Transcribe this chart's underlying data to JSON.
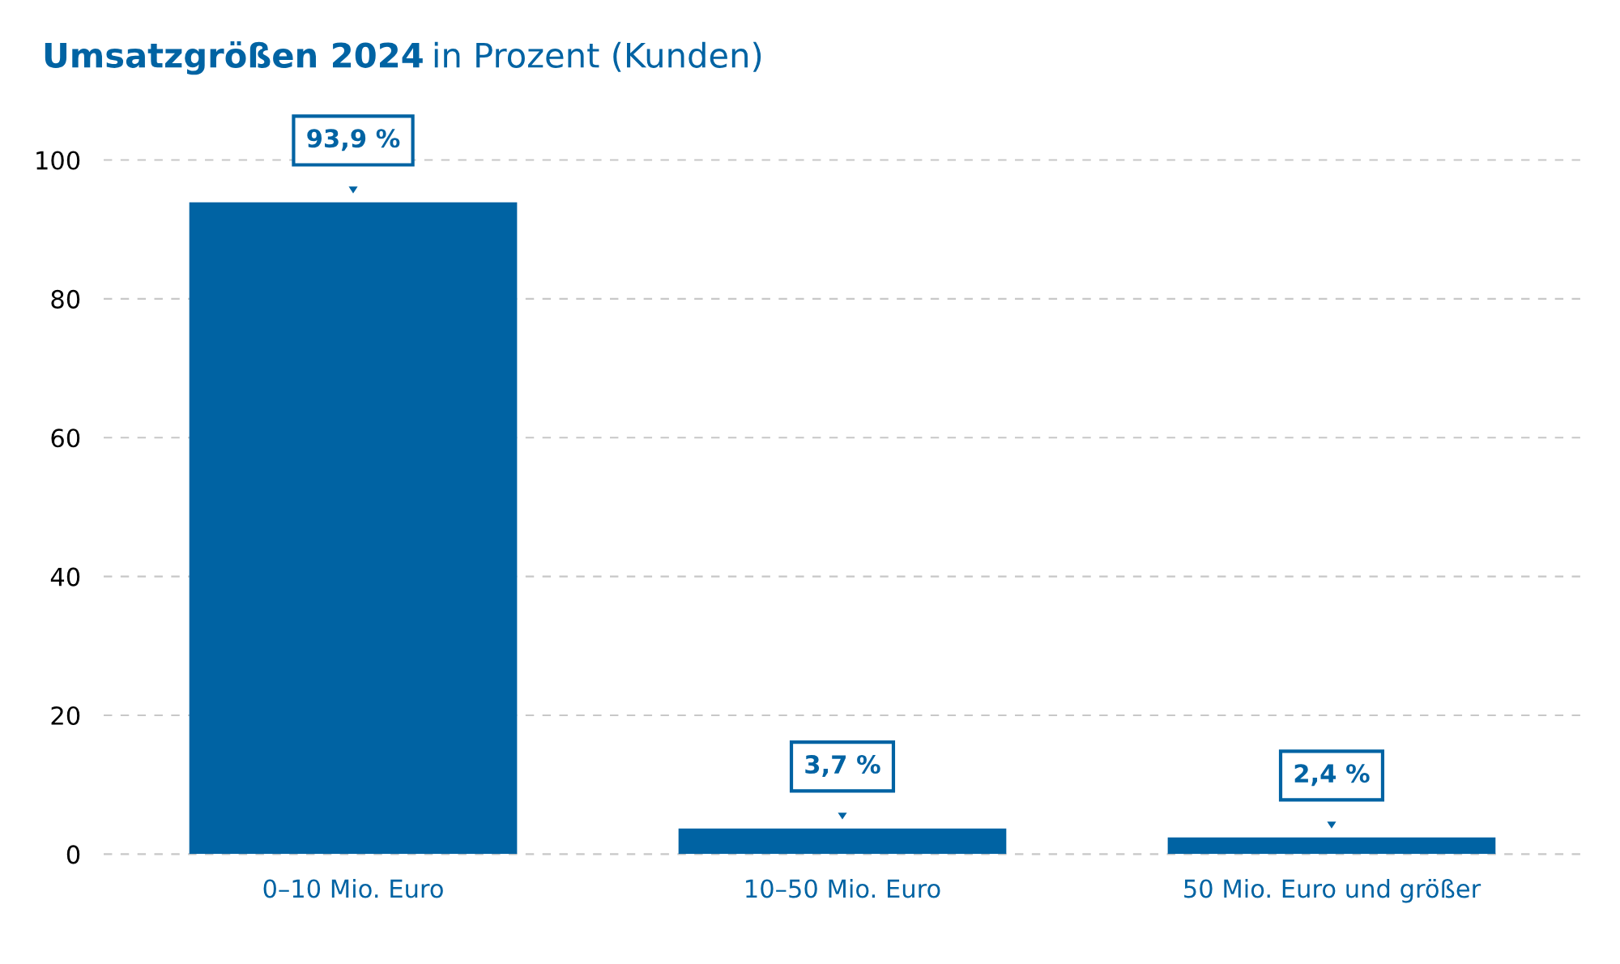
{
  "chart_data": {
    "type": "bar",
    "title": "Umsatzgrößen 2024",
    "subtitle": "in Prozent (Kunden)",
    "categories": [
      "0–10 Mio. Euro",
      "10–50 Mio. Euro",
      "50 Mio. Euro und größer"
    ],
    "values": [
      93.9,
      3.7,
      2.4
    ],
    "color": "#0063a3",
    "value_labels": [
      "93,9 %",
      "3,7 %",
      "2,4 %"
    ],
    "ylim": [
      0,
      100
    ],
    "yticks": [
      0,
      20,
      40,
      60,
      80,
      100
    ],
    "grid": "y"
  }
}
